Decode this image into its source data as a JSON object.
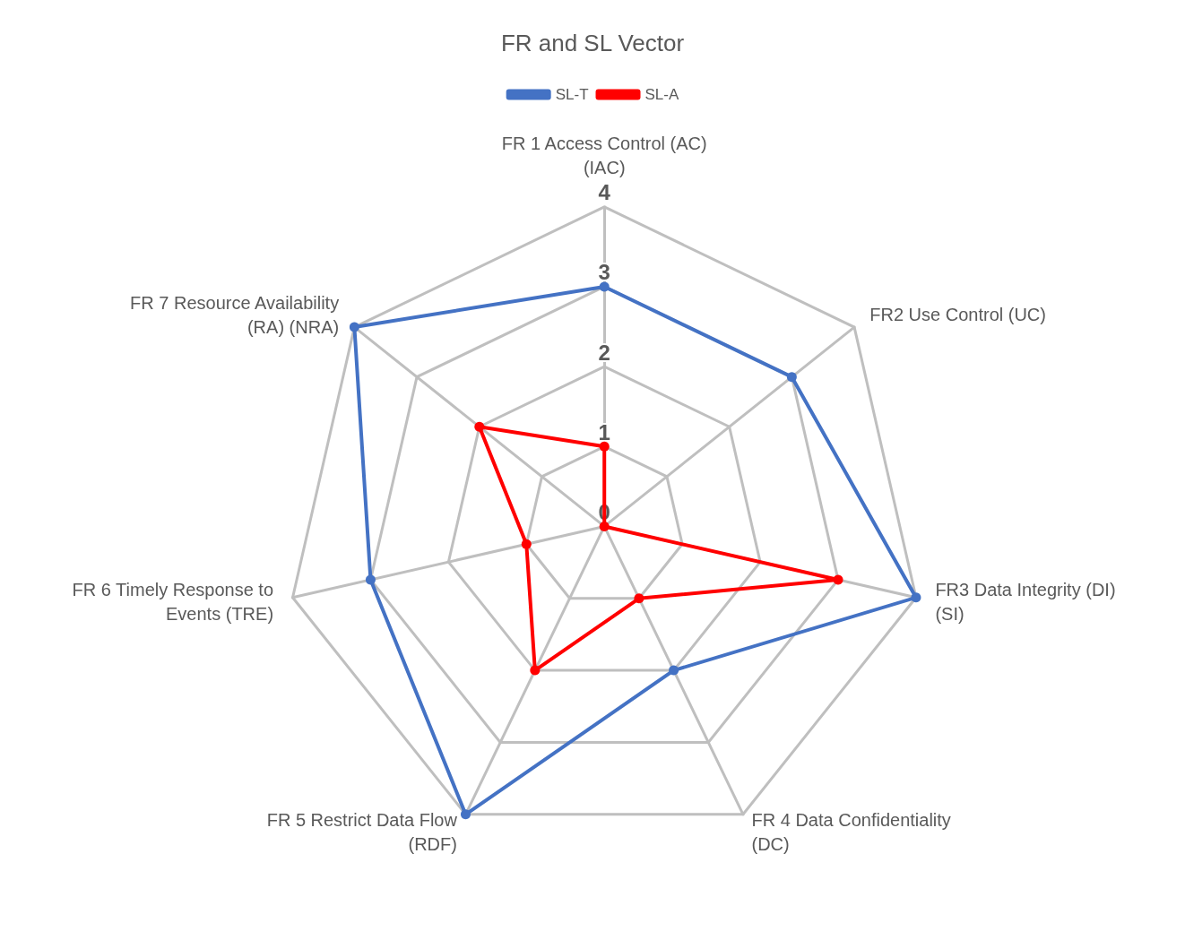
{
  "chart_data": {
    "type": "radar",
    "title": "FR and SL Vector",
    "categories": [
      "FR 1 Access Control (AC) (IAC)",
      "FR2 Use Control (UC)",
      "FR3 Data Integrity (DI) (SI)",
      "FR 4 Data Confidentiality (DC)",
      "FR 5 Restrict Data Flow (RDF)",
      "FR 6 Timely Response to Events (TRE)",
      "FR 7 Resource Availability (RA) (NRA)"
    ],
    "series": [
      {
        "name": "SL-T",
        "color": "#4472c4",
        "values": [
          3,
          3,
          4,
          2,
          4,
          3,
          4
        ]
      },
      {
        "name": "SL-A",
        "color": "#ff0000",
        "values": [
          1,
          0,
          3,
          1,
          2,
          1,
          2
        ]
      }
    ],
    "ylim": [
      0,
      4
    ],
    "yticks": [
      0,
      1,
      2,
      3,
      4
    ],
    "legend": "top",
    "marker": "circle",
    "grid": true
  }
}
